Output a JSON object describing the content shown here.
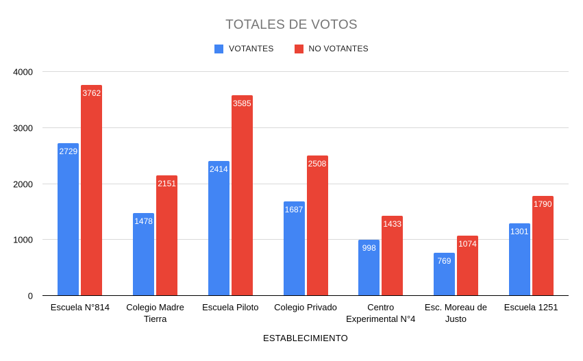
{
  "chart_data": {
    "type": "bar",
    "title": "TOTALES DE VOTOS",
    "xlabel": "ESTABLECIMIENTO",
    "ylabel": "",
    "categories": [
      "Escuela N°814",
      "Colegio Madre Tierra",
      "Escuela Piloto",
      "Colegio Privado",
      "Centro Experimental N°4",
      "Esc. Moreau de Justo",
      "Escuela 1251"
    ],
    "series": [
      {
        "name": "VOTANTES",
        "color": "#4285f4",
        "values": [
          2729,
          1478,
          2414,
          1687,
          998,
          769,
          1301
        ]
      },
      {
        "name": "NO VOTANTES",
        "color": "#ea4335",
        "values": [
          3762,
          2151,
          3585,
          2508,
          1433,
          1074,
          1790
        ]
      }
    ],
    "ylim": [
      0,
      4000
    ],
    "yticks": [
      0,
      1000,
      2000,
      3000,
      4000
    ],
    "grid": true,
    "legend_position": "top",
    "data_labels": true
  },
  "colors": {
    "background": "#ffffff",
    "title_text": "#757575",
    "axis_text": "#000000",
    "gridline": "#d9d9d9",
    "baseline": "#000000",
    "bar_label_text": "#ffffff"
  }
}
